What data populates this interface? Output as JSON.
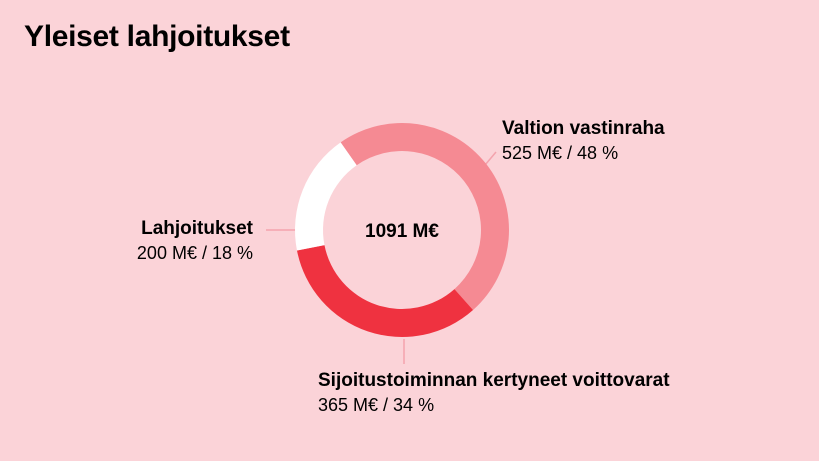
{
  "colors": {
    "background": "#fbd3d8",
    "connector": "#f4a3ad",
    "text": "#000000"
  },
  "chart_data": {
    "type": "pie",
    "title": "Yleiset lahjoitukset",
    "center_label": "1091 M€",
    "slices": [
      {
        "label": "Valtion vastinraha",
        "value": 525,
        "value_text": "525 M€ / 48 %",
        "percent": 48,
        "color": "#f58a93"
      },
      {
        "label": "Sijoitustoiminnan kertyneet voittovarat",
        "value": 365,
        "value_text": "365 M€ / 34 %",
        "percent": 34,
        "color": "#ef3240"
      },
      {
        "label": "Lahjoitukset",
        "value": 200,
        "value_text": "200 M€ / 18 %",
        "percent": 18,
        "color": "#ffffff"
      }
    ]
  }
}
